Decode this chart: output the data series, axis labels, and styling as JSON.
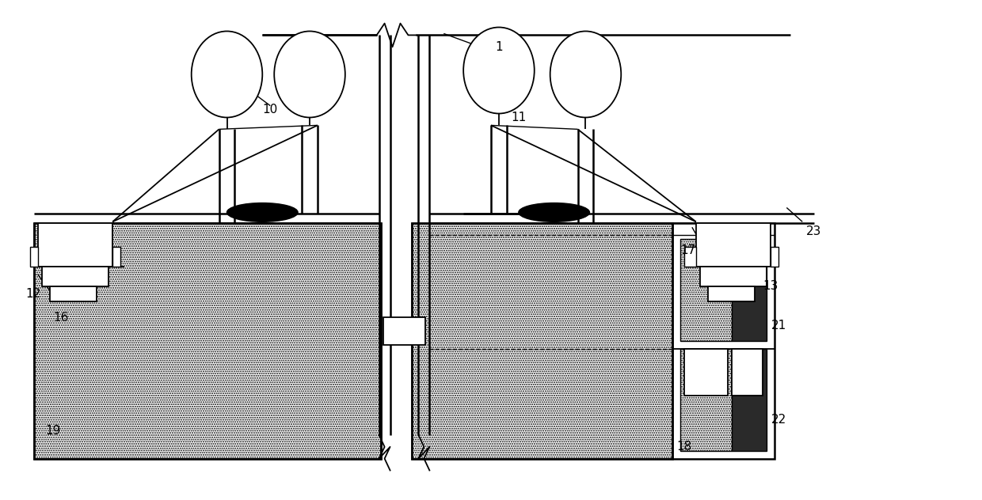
{
  "bg_color": "#ffffff",
  "lc": "#000000",
  "fig_width": 12.4,
  "fig_height": 6.32,
  "dpi": 100
}
